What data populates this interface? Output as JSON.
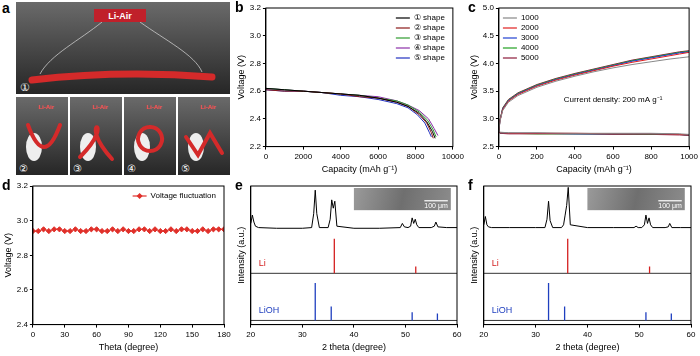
{
  "photo": {
    "panel": "a",
    "device_text": "Li-Air",
    "shape_labels": [
      "①",
      "②",
      "③",
      "④",
      "⑤"
    ]
  },
  "chart_data": [
    {
      "panel": "b",
      "type": "line",
      "x_label": "Capacity (mAh g⁻¹)",
      "y_label": "Voltage (V)",
      "xlim": [
        0,
        10000
      ],
      "xticks": [
        0,
        2000,
        4000,
        6000,
        8000,
        10000
      ],
      "ylim": [
        2.2,
        3.2
      ],
      "yticks": [
        2.2,
        2.4,
        2.6,
        2.8,
        {
          "value": 3,
          "label": "3.0"
        },
        3.2
      ],
      "grid": false,
      "legend": "upper right",
      "series": [
        {
          "name": "① shape",
          "color": "#000000",
          "line_style": "solid",
          "x": [
            0,
            1000,
            2000,
            3000,
            4000,
            5000,
            6000,
            7000,
            7600,
            8200,
            8600,
            8900,
            9050
          ],
          "values": [
            2.62,
            2.61,
            2.6,
            2.59,
            2.58,
            2.57,
            2.55,
            2.52,
            2.49,
            2.44,
            2.38,
            2.31,
            2.26
          ]
        },
        {
          "name": "② shape",
          "color": "#8b1a1a",
          "line_style": "solid",
          "x": [
            0,
            1000,
            2000,
            3000,
            4000,
            5000,
            6000,
            7000,
            7600,
            8200,
            8600,
            8850,
            8950
          ],
          "values": [
            2.61,
            2.6,
            2.6,
            2.59,
            2.58,
            2.56,
            2.55,
            2.52,
            2.49,
            2.43,
            2.37,
            2.3,
            2.26
          ]
        },
        {
          "name": "③ shape",
          "color": "#2e9b2e",
          "line_style": "solid",
          "x": [
            0,
            1000,
            2000,
            3000,
            4000,
            5000,
            6000,
            7000,
            7600,
            8200,
            8650,
            8950,
            9100
          ],
          "values": [
            2.62,
            2.61,
            2.6,
            2.59,
            2.58,
            2.57,
            2.55,
            2.53,
            2.5,
            2.45,
            2.39,
            2.32,
            2.27
          ]
        },
        {
          "name": "④ shape",
          "color": "#8b2fa8",
          "line_style": "solid",
          "x": [
            0,
            1000,
            2000,
            3000,
            4000,
            5000,
            6000,
            7000,
            7600,
            8200,
            8700,
            9000,
            9200
          ],
          "values": [
            2.62,
            2.61,
            2.6,
            2.59,
            2.58,
            2.57,
            2.56,
            2.53,
            2.5,
            2.46,
            2.4,
            2.33,
            2.28
          ]
        },
        {
          "name": "⑤ shape",
          "color": "#2030c0",
          "line_style": "solid",
          "x": [
            0,
            1000,
            2000,
            3000,
            4000,
            5000,
            6000,
            7000,
            7600,
            8100,
            8500,
            8750,
            8850
          ],
          "values": [
            2.61,
            2.6,
            2.6,
            2.59,
            2.57,
            2.56,
            2.54,
            2.51,
            2.48,
            2.43,
            2.37,
            2.3,
            2.27
          ]
        }
      ]
    },
    {
      "panel": "c",
      "type": "line",
      "x_label": "Capacity (mAh g⁻¹)",
      "y_label": "Voltage (V)",
      "xlim": [
        0,
        1000
      ],
      "xticks": [
        0,
        200,
        400,
        600,
        800,
        1000
      ],
      "ylim": [
        2.5,
        5
      ],
      "yticks": [
        2.5,
        {
          "value": 3,
          "label": "3.0"
        },
        3.5,
        {
          "value": 4,
          "label": "4.0"
        },
        4.5,
        {
          "value": 5,
          "label": "5.0"
        }
      ],
      "grid": false,
      "legend": "upper left",
      "annotation": "Current density: 200 mA g⁻¹",
      "series": [
        {
          "name": "1000",
          "color": "#888888",
          "line_style": "solid",
          "x": [
            0,
            5,
            50,
            200,
            400,
            600,
            800,
            950,
            1000,
            1000,
            0,
            5,
            20,
            50,
            100,
            200,
            300,
            400,
            500,
            600,
            700,
            800,
            900,
            950,
            1000
          ],
          "values": [
            2.8,
            2.76,
            2.75,
            2.75,
            2.74,
            2.74,
            2.74,
            2.73,
            2.72,
            null,
            2.78,
            2.95,
            3.15,
            3.3,
            3.42,
            3.57,
            3.68,
            3.77,
            3.85,
            3.92,
            3.98,
            4.03,
            4.08,
            4.1,
            4.12
          ]
        },
        {
          "name": "2000",
          "color": "#e02020",
          "line_style": "solid",
          "x": [
            0,
            5,
            50,
            200,
            400,
            600,
            800,
            950,
            1000,
            1000,
            0,
            5,
            20,
            50,
            100,
            200,
            300,
            400,
            500,
            600,
            700,
            800,
            900,
            950,
            1000
          ],
          "values": [
            2.79,
            2.75,
            2.74,
            2.74,
            2.74,
            2.73,
            2.73,
            2.72,
            2.71,
            null,
            2.78,
            2.96,
            3.17,
            3.32,
            3.44,
            3.59,
            3.7,
            3.79,
            3.87,
            3.95,
            4.02,
            4.08,
            4.14,
            4.17,
            4.2
          ]
        },
        {
          "name": "3000",
          "color": "#2040d0",
          "line_style": "solid",
          "x": [
            0,
            5,
            50,
            200,
            400,
            600,
            800,
            950,
            1000,
            1000,
            0,
            5,
            20,
            50,
            100,
            200,
            300,
            400,
            500,
            600,
            700,
            800,
            900,
            950,
            1000
          ],
          "values": [
            2.79,
            2.75,
            2.74,
            2.74,
            2.73,
            2.73,
            2.73,
            2.72,
            2.71,
            null,
            2.77,
            2.96,
            3.18,
            3.33,
            3.45,
            3.6,
            3.71,
            3.8,
            3.88,
            3.96,
            4.04,
            4.1,
            4.16,
            4.19,
            4.21
          ]
        },
        {
          "name": "4000",
          "color": "#20a020",
          "line_style": "solid",
          "x": [
            0,
            5,
            50,
            200,
            400,
            600,
            800,
            950,
            1000,
            1000,
            0,
            5,
            20,
            50,
            100,
            200,
            300,
            400,
            500,
            600,
            700,
            800,
            900,
            950,
            1000
          ],
          "values": [
            2.78,
            2.75,
            2.74,
            2.73,
            2.73,
            2.73,
            2.72,
            2.72,
            2.71,
            null,
            2.77,
            2.97,
            3.19,
            3.34,
            3.46,
            3.61,
            3.72,
            3.81,
            3.89,
            3.97,
            4.05,
            4.11,
            4.17,
            4.2,
            4.22
          ]
        },
        {
          "name": "5000",
          "color": "#8b1a3a",
          "line_style": "solid",
          "x": [
            0,
            5,
            50,
            200,
            400,
            600,
            800,
            950,
            1000,
            1000,
            0,
            5,
            20,
            50,
            100,
            200,
            300,
            400,
            500,
            600,
            700,
            800,
            900,
            950,
            1000
          ],
          "values": [
            2.78,
            2.74,
            2.73,
            2.73,
            2.73,
            2.72,
            2.72,
            2.71,
            2.7,
            null,
            2.77,
            2.97,
            3.2,
            3.35,
            3.47,
            3.62,
            3.73,
            3.82,
            3.9,
            3.98,
            4.06,
            4.12,
            4.18,
            4.21,
            4.23
          ]
        }
      ]
    },
    {
      "panel": "d",
      "type": "line",
      "x_label": "Theta (degree)",
      "y_label": "Voltage (V)",
      "xlim": [
        0,
        180
      ],
      "xticks": [
        0,
        30,
        60,
        90,
        120,
        150,
        180
      ],
      "ylim": [
        2.4,
        3.2
      ],
      "yticks": [
        2.4,
        2.6,
        2.8,
        {
          "value": 3,
          "label": "3.0"
        },
        3.2
      ],
      "grid": false,
      "legend": "upper right",
      "series": [
        {
          "name": "Voltage fluctuation",
          "color": "#e0302a",
          "marker": "diamond",
          "line_style": "solid",
          "x": [
            0,
            5,
            10,
            15,
            20,
            25,
            30,
            35,
            40,
            45,
            50,
            55,
            60,
            65,
            70,
            75,
            80,
            85,
            90,
            95,
            100,
            105,
            110,
            115,
            120,
            125,
            130,
            135,
            140,
            145,
            150,
            155,
            160,
            165,
            170,
            175,
            180
          ],
          "values": [
            2.94,
            2.94,
            2.95,
            2.94,
            2.95,
            2.95,
            2.94,
            2.94,
            2.95,
            2.94,
            2.94,
            2.95,
            2.95,
            2.94,
            2.94,
            2.95,
            2.94,
            2.95,
            2.94,
            2.94,
            2.95,
            2.95,
            2.94,
            2.95,
            2.94,
            2.94,
            2.95,
            2.94,
            2.95,
            2.95,
            2.94,
            2.94,
            2.95,
            2.94,
            2.95,
            2.95,
            2.95
          ]
        }
      ]
    },
    {
      "panel": "e",
      "type": "line",
      "x_label": "2 theta (degree)",
      "y_label": "Intensity (a.u.)",
      "xlim": [
        20,
        60
      ],
      "xticks": [
        20,
        30,
        40,
        50,
        60
      ],
      "ylim": [
        0,
        10
      ],
      "grid": false,
      "tick_labels": "x",
      "inset": {
        "scale_text": "100 μm"
      },
      "series": [
        {
          "color": "#000000",
          "line_style": "solid",
          "x": [
            20,
            20.3,
            20.6,
            20.9,
            21.5,
            25,
            30,
            31.8,
            32.2,
            32.5,
            32.8,
            33.3,
            35,
            35.4,
            35.7,
            36.0,
            36.3,
            36.7,
            40,
            45,
            49,
            49.4,
            49.8,
            50.5,
            51.0,
            51.3,
            51.6,
            51.9,
            52.2,
            52.6,
            55,
            55.6,
            55.9,
            56.3,
            58,
            60
          ],
          "values": [
            7.3,
            7.9,
            7.4,
            7.1,
            7.0,
            6.95,
            6.95,
            7.0,
            8.0,
            9.7,
            8.0,
            7.0,
            7.0,
            7.6,
            9.0,
            8.4,
            8.9,
            7.1,
            6.95,
            6.95,
            7.0,
            7.3,
            7.05,
            7.0,
            7.1,
            7.7,
            7.3,
            7.6,
            7.2,
            7.0,
            7.0,
            7.1,
            7.4,
            7.05,
            7.0,
            7.0
          ]
        },
        {
          "name": "Li",
          "type": "stick",
          "color": "#d42020",
          "base": 3.7,
          "x": [
            36.2,
            52.0
          ],
          "values": [
            6.2,
            4.2
          ]
        },
        {
          "name": "LiOH",
          "type": "stick",
          "color": "#1f3fbf",
          "base": 0.3,
          "x": [
            32.5,
            35.6,
            51.3,
            56.2
          ],
          "values": [
            3.0,
            1.3,
            0.9,
            0.8
          ]
        }
      ]
    },
    {
      "panel": "f",
      "type": "line",
      "x_label": "2 theta (degree)",
      "y_label": "Intensity (a.u.)",
      "xlim": [
        20,
        60
      ],
      "xticks": [
        20,
        30,
        40,
        50,
        60
      ],
      "ylim": [
        0,
        10
      ],
      "grid": false,
      "tick_labels": "x",
      "inset": {
        "scale_text": "100 μm"
      },
      "series": [
        {
          "color": "#000000",
          "line_style": "solid",
          "x": [
            20,
            20.3,
            20.6,
            20.9,
            21.5,
            25,
            30,
            31.8,
            32.2,
            32.5,
            32.8,
            33.3,
            35,
            35.4,
            35.7,
            36.0,
            36.3,
            36.7,
            40,
            45,
            49,
            49.4,
            49.8,
            50.5,
            51.0,
            51.3,
            51.6,
            51.9,
            52.2,
            52.6,
            55,
            55.6,
            55.9,
            56.3,
            58,
            60
          ],
          "values": [
            7.2,
            7.8,
            7.2,
            7.05,
            7.0,
            7.0,
            7.0,
            7.0,
            7.6,
            8.9,
            7.5,
            7.0,
            7.0,
            7.2,
            7.9,
            8.6,
            9.9,
            7.2,
            7.0,
            7.0,
            7.0,
            7.1,
            7.0,
            7.0,
            7.2,
            7.9,
            7.3,
            7.7,
            7.2,
            7.0,
            7.0,
            7.05,
            7.3,
            7.0,
            7.0,
            7.0
          ]
        },
        {
          "name": "Li",
          "type": "stick",
          "color": "#d42020",
          "base": 3.7,
          "x": [
            36.2,
            52.0
          ],
          "values": [
            6.2,
            4.2
          ]
        },
        {
          "name": "LiOH",
          "type": "stick",
          "color": "#1f3fbf",
          "base": 0.3,
          "x": [
            32.5,
            35.6,
            51.3,
            56.2
          ],
          "values": [
            3.0,
            1.3,
            0.9,
            0.8
          ]
        }
      ]
    }
  ]
}
